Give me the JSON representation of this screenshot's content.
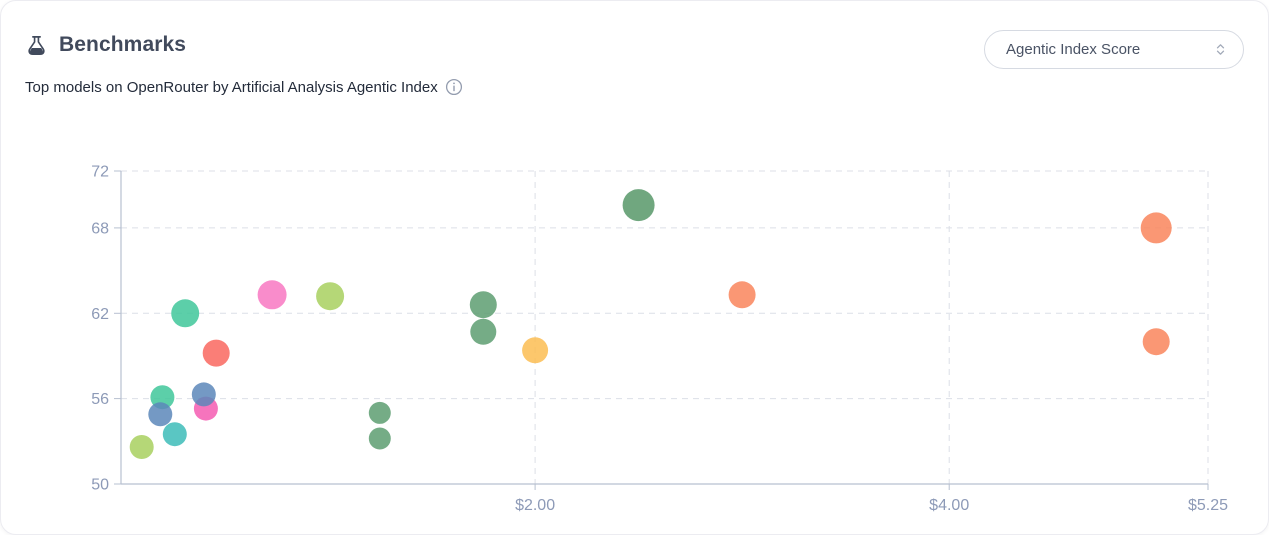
{
  "header": {
    "title": "Benchmarks",
    "subtitle": "Top models on OpenRouter by Artificial Analysis Agentic Index",
    "title_icon": "flask-icon",
    "subtitle_icon": "info-icon",
    "title_color": "#414a5c",
    "subtitle_color": "#232b3a"
  },
  "controls": {
    "metric_select": {
      "value": "Agentic Index Score",
      "icon": "chevron-up-down-icon"
    }
  },
  "chart_data": {
    "type": "scatter",
    "title": "",
    "xlabel": "",
    "ylabel": "",
    "xlim": [
      0,
      5.25
    ],
    "ylim": [
      50,
      72
    ],
    "x_tick_values": [
      2.0,
      4.0,
      5.25
    ],
    "x_ticks": [
      "$2.00",
      "$4.00",
      "$5.25"
    ],
    "y_ticks": [
      72,
      68,
      62,
      56,
      50
    ],
    "grid": "dashed",
    "legend": "none",
    "grid_color": "#dcdfe7",
    "axis_color": "#b7c0d0",
    "tick_label_color": "#8d9ab7",
    "point_opacity": 0.85,
    "points": [
      {
        "price": 0.1,
        "score": 52.6,
        "radius": 12,
        "color": "#a8d05f"
      },
      {
        "price": 0.26,
        "score": 53.5,
        "radius": 12,
        "color": "#3dbcb9"
      },
      {
        "price": 0.2,
        "score": 56.1,
        "radius": 12,
        "color": "#3fc79a"
      },
      {
        "price": 0.19,
        "score": 54.9,
        "radius": 12,
        "color": "#5c87ba"
      },
      {
        "price": 0.41,
        "score": 55.3,
        "radius": 12,
        "color": "#f45cb1"
      },
      {
        "price": 0.4,
        "score": 56.3,
        "radius": 12,
        "color": "#5c87ba"
      },
      {
        "price": 0.46,
        "score": 59.2,
        "radius": 13.5,
        "color": "#f9675f"
      },
      {
        "price": 0.31,
        "score": 62.0,
        "radius": 14,
        "color": "#3fc79a"
      },
      {
        "price": 0.73,
        "score": 63.3,
        "radius": 14.5,
        "color": "#f878c2"
      },
      {
        "price": 1.01,
        "score": 63.2,
        "radius": 14,
        "color": "#a8d05f"
      },
      {
        "price": 1.25,
        "score": 55.0,
        "radius": 11,
        "color": "#5d9e71"
      },
      {
        "price": 1.25,
        "score": 53.2,
        "radius": 11,
        "color": "#5d9e71"
      },
      {
        "price": 1.75,
        "score": 60.7,
        "radius": 13,
        "color": "#5d9e71"
      },
      {
        "price": 1.75,
        "score": 62.6,
        "radius": 13.5,
        "color": "#5d9e71"
      },
      {
        "price": 2.0,
        "score": 59.4,
        "radius": 13,
        "color": "#fbbd52"
      },
      {
        "price": 2.5,
        "score": 69.6,
        "radius": 16,
        "color": "#579868"
      },
      {
        "price": 3.0,
        "score": 63.3,
        "radius": 13.5,
        "color": "#f9855c"
      },
      {
        "price": 5.0,
        "score": 60.0,
        "radius": 13.5,
        "color": "#f9855c"
      },
      {
        "price": 5.0,
        "score": 68.0,
        "radius": 15.5,
        "color": "#f9855c"
      }
    ]
  }
}
